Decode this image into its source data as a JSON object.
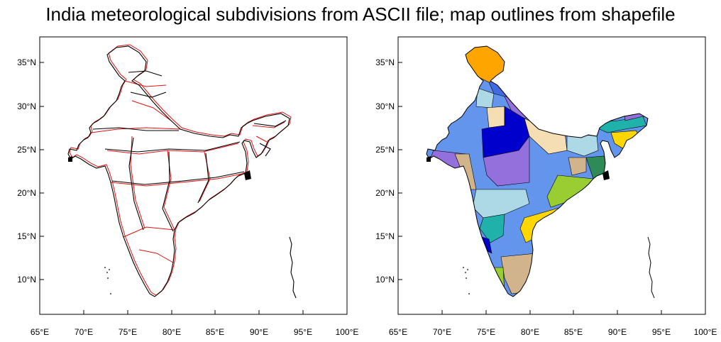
{
  "title": "India meteorological subdivisions from ASCII file; map outlines from shapefile",
  "panels": [
    {
      "name": "outline-map",
      "x_ticks": [
        "65°E",
        "70°E",
        "75°E",
        "80°E",
        "85°E",
        "90°E",
        "95°E",
        "100°E"
      ],
      "y_ticks": [
        "35°N",
        "30°N",
        "25°N",
        "20°N",
        "15°N",
        "10°N"
      ],
      "colors": {
        "subdivision_lines": "#e01010",
        "shapefile_lines": "#000000"
      }
    },
    {
      "name": "filled-map",
      "x_ticks": [
        "65°E",
        "70°E",
        "75°E",
        "80°E",
        "85°E",
        "90°E",
        "95°E",
        "100°E"
      ],
      "y_ticks": [
        "35°N",
        "30°N",
        "25°N",
        "20°N",
        "15°N",
        "10°N"
      ],
      "colors": {
        "orange": "#ffa500",
        "light_blue": "#add8e6",
        "cornflower": "#6495ed",
        "royal_blue": "#4169e1",
        "blue": "#0000cd",
        "purple": "#9370db",
        "tan": "#d2b48c",
        "wheat": "#f5deb3",
        "teal": "#20b2aa",
        "green": "#2e8b57",
        "yellow_green": "#9acd32",
        "gold": "#ffd700"
      }
    }
  ]
}
